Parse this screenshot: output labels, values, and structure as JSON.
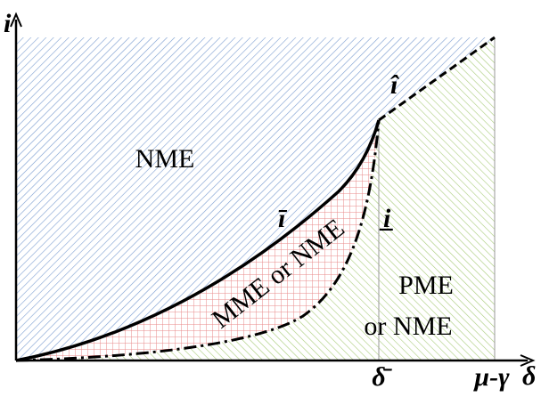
{
  "axes": {
    "y_label": "i",
    "x_label": "δ",
    "x_ticks": [
      "δ̄",
      "μ-γ"
    ]
  },
  "curves": {
    "upper": "ī",
    "lower": "i̲",
    "hat": "î"
  },
  "regions": {
    "top": "NME",
    "middle": "MME or NME",
    "bottom": [
      "PME",
      "or NME"
    ]
  }
}
